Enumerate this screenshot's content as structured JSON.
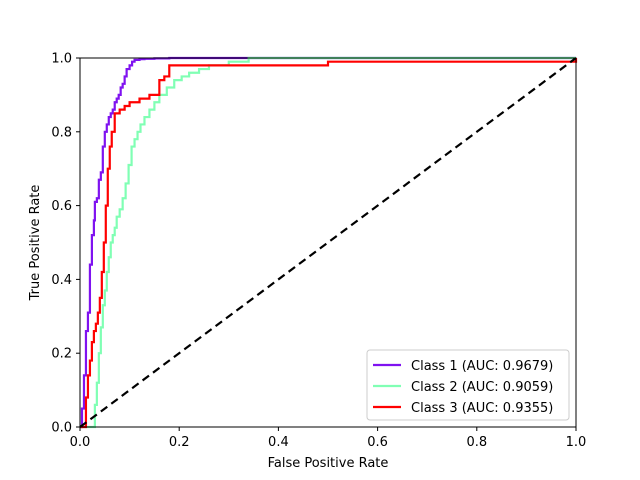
{
  "chart_data": {
    "type": "line",
    "xlabel": "False Positive Rate",
    "ylabel": "True Positive Rate",
    "xlim": [
      0.0,
      1.0
    ],
    "ylim": [
      0.0,
      1.0
    ],
    "xticks": [
      "0.0",
      "0.2",
      "0.4",
      "0.6",
      "0.8",
      "1.0"
    ],
    "yticks": [
      "0.0",
      "0.2",
      "0.4",
      "0.6",
      "0.8",
      "1.0"
    ],
    "grid": false,
    "legend_position": "lower-right",
    "series": [
      {
        "name": "Class 1 (AUC: 0.9679)",
        "color": "#7f12f0",
        "x": [
          0.0,
          0.004,
          0.004,
          0.008,
          0.008,
          0.012,
          0.012,
          0.016,
          0.016,
          0.02,
          0.02,
          0.024,
          0.024,
          0.028,
          0.028,
          0.03,
          0.03,
          0.034,
          0.034,
          0.038,
          0.038,
          0.042,
          0.042,
          0.046,
          0.046,
          0.05,
          0.05,
          0.054,
          0.054,
          0.058,
          0.058,
          0.062,
          0.062,
          0.066,
          0.066,
          0.07,
          0.07,
          0.074,
          0.074,
          0.078,
          0.078,
          0.082,
          0.082,
          0.086,
          0.086,
          0.09,
          0.09,
          0.094,
          0.094,
          0.1,
          0.1,
          0.105,
          0.105,
          0.11,
          0.11,
          0.12,
          0.12,
          0.13,
          0.13,
          0.15,
          0.15,
          0.18,
          0.18,
          0.34,
          0.34,
          1.0
        ],
        "y": [
          0.0,
          0.0,
          0.05,
          0.05,
          0.14,
          0.14,
          0.26,
          0.26,
          0.31,
          0.31,
          0.44,
          0.44,
          0.52,
          0.52,
          0.56,
          0.56,
          0.61,
          0.61,
          0.62,
          0.62,
          0.67,
          0.67,
          0.69,
          0.69,
          0.76,
          0.76,
          0.8,
          0.8,
          0.82,
          0.82,
          0.84,
          0.84,
          0.85,
          0.85,
          0.86,
          0.86,
          0.88,
          0.88,
          0.89,
          0.89,
          0.9,
          0.9,
          0.92,
          0.92,
          0.93,
          0.93,
          0.95,
          0.95,
          0.97,
          0.97,
          0.98,
          0.98,
          0.99,
          0.99,
          0.995,
          0.995,
          0.997,
          0.997,
          0.998,
          0.998,
          0.999,
          0.999,
          1.0,
          1.0,
          1.0,
          1.0
        ]
      },
      {
        "name": "Class 2 (AUC: 0.9059)",
        "color": "#80ffb4",
        "x": [
          0.0,
          0.03,
          0.03,
          0.034,
          0.034,
          0.038,
          0.038,
          0.042,
          0.042,
          0.046,
          0.046,
          0.05,
          0.05,
          0.054,
          0.054,
          0.058,
          0.058,
          0.062,
          0.062,
          0.066,
          0.066,
          0.07,
          0.07,
          0.074,
          0.074,
          0.08,
          0.08,
          0.086,
          0.086,
          0.092,
          0.092,
          0.098,
          0.098,
          0.104,
          0.104,
          0.11,
          0.11,
          0.116,
          0.116,
          0.122,
          0.122,
          0.13,
          0.13,
          0.14,
          0.14,
          0.15,
          0.15,
          0.16,
          0.16,
          0.175,
          0.175,
          0.19,
          0.19,
          0.205,
          0.205,
          0.22,
          0.22,
          0.24,
          0.24,
          0.26,
          0.26,
          0.3,
          0.3,
          0.34,
          0.34,
          1.0
        ],
        "y": [
          0.0,
          0.0,
          0.06,
          0.06,
          0.12,
          0.12,
          0.2,
          0.2,
          0.27,
          0.27,
          0.33,
          0.33,
          0.37,
          0.37,
          0.42,
          0.42,
          0.46,
          0.46,
          0.5,
          0.5,
          0.52,
          0.52,
          0.54,
          0.54,
          0.57,
          0.57,
          0.59,
          0.59,
          0.62,
          0.62,
          0.66,
          0.66,
          0.71,
          0.71,
          0.76,
          0.76,
          0.78,
          0.78,
          0.8,
          0.8,
          0.82,
          0.82,
          0.84,
          0.84,
          0.86,
          0.86,
          0.88,
          0.88,
          0.9,
          0.9,
          0.92,
          0.92,
          0.94,
          0.94,
          0.95,
          0.95,
          0.96,
          0.96,
          0.97,
          0.97,
          0.98,
          0.98,
          0.99,
          0.99,
          1.0,
          1.0
        ]
      },
      {
        "name": "Class 3 (AUC: 0.9355)",
        "color": "#ff0000",
        "x": [
          0.0,
          0.012,
          0.012,
          0.016,
          0.016,
          0.02,
          0.02,
          0.024,
          0.024,
          0.028,
          0.028,
          0.032,
          0.032,
          0.036,
          0.036,
          0.04,
          0.04,
          0.044,
          0.044,
          0.048,
          0.048,
          0.052,
          0.052,
          0.056,
          0.056,
          0.06,
          0.06,
          0.064,
          0.064,
          0.07,
          0.07,
          0.08,
          0.08,
          0.09,
          0.09,
          0.1,
          0.1,
          0.12,
          0.12,
          0.14,
          0.14,
          0.16,
          0.16,
          0.17,
          0.17,
          0.18,
          0.18,
          0.19,
          0.19,
          0.5,
          0.5,
          0.52,
          0.52,
          1.0,
          1.0
        ],
        "y": [
          0.0,
          0.0,
          0.08,
          0.08,
          0.14,
          0.14,
          0.18,
          0.18,
          0.23,
          0.23,
          0.26,
          0.26,
          0.28,
          0.28,
          0.31,
          0.31,
          0.35,
          0.35,
          0.42,
          0.42,
          0.5,
          0.5,
          0.6,
          0.6,
          0.7,
          0.7,
          0.76,
          0.76,
          0.8,
          0.8,
          0.85,
          0.85,
          0.86,
          0.86,
          0.87,
          0.87,
          0.88,
          0.88,
          0.89,
          0.89,
          0.9,
          0.9,
          0.94,
          0.94,
          0.95,
          0.95,
          0.98,
          0.98,
          0.98,
          0.98,
          0.99,
          0.99,
          0.99,
          0.99,
          1.0
        ]
      }
    ],
    "reference_line": {
      "color": "#000000",
      "style": "dashed",
      "x": [
        0.0,
        1.0
      ],
      "y": [
        0.0,
        1.0
      ]
    }
  }
}
